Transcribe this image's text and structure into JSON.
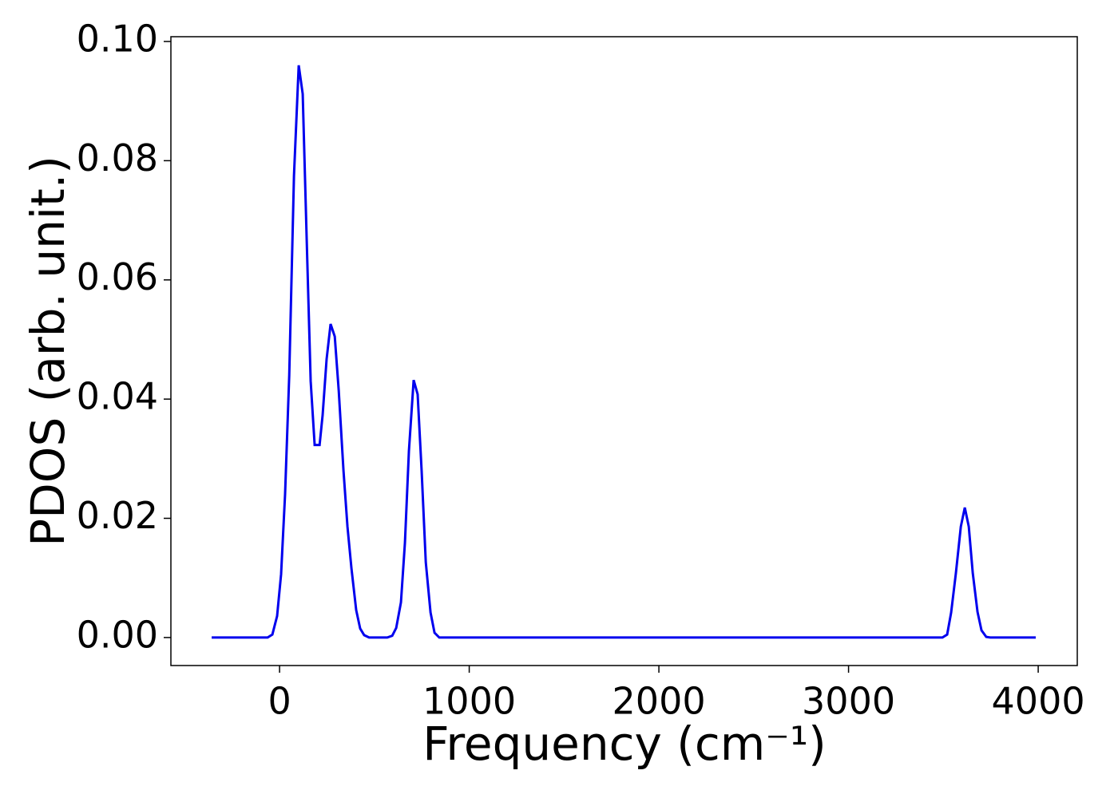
{
  "chart_data": {
    "type": "line",
    "xlabel": "Frequency (cm⁻¹)",
    "ylabel": "PDOS (arb. unit.)",
    "x": [
      -358,
      -63,
      -38,
      -13,
      8,
      29,
      51,
      76,
      101,
      122,
      143,
      164,
      185,
      211,
      227,
      248,
      269,
      291,
      312,
      337,
      358,
      379,
      404,
      425,
      446,
      472,
      568,
      594,
      615,
      640,
      661,
      682,
      707,
      728,
      749,
      771,
      796,
      817,
      842,
      3495,
      3520,
      3541,
      3566,
      3592,
      3613,
      3634,
      3655,
      3680,
      3701,
      3726,
      3747,
      3987
    ],
    "series": [
      {
        "name": "PDOS",
        "color": "#0000ee",
        "values": [
          0,
          0,
          0.0005,
          0.0036,
          0.0106,
          0.024,
          0.044,
          0.0775,
          0.096,
          0.0912,
          0.0668,
          0.043,
          0.0323,
          0.0323,
          0.0373,
          0.0467,
          0.0526,
          0.0505,
          0.0414,
          0.028,
          0.0186,
          0.0116,
          0.0046,
          0.0015,
          0.0004,
          0,
          0,
          0.0003,
          0.0016,
          0.0059,
          0.0159,
          0.0313,
          0.0432,
          0.0408,
          0.028,
          0.0126,
          0.0042,
          0.0008,
          0,
          0,
          0.0005,
          0.0042,
          0.0108,
          0.0186,
          0.0218,
          0.0186,
          0.0108,
          0.0043,
          0.0012,
          0.0001,
          0,
          0
        ]
      }
    ],
    "xlim": [
      -573,
      4206
    ],
    "ylim": [
      -0.0047,
      0.1008
    ],
    "xticks": [
      0,
      1000,
      2000,
      3000,
      4000
    ],
    "yticks": [
      {
        "value": 0,
        "label": "0.00"
      },
      {
        "value": 0.02,
        "label": "0.02"
      },
      {
        "value": 0.04,
        "label": "0.04"
      },
      {
        "value": 0.06,
        "label": "0.06"
      },
      {
        "value": 0.08,
        "label": "0.08"
      },
      {
        "value": 0.1,
        "label": "0.10"
      }
    ],
    "grid": false
  }
}
